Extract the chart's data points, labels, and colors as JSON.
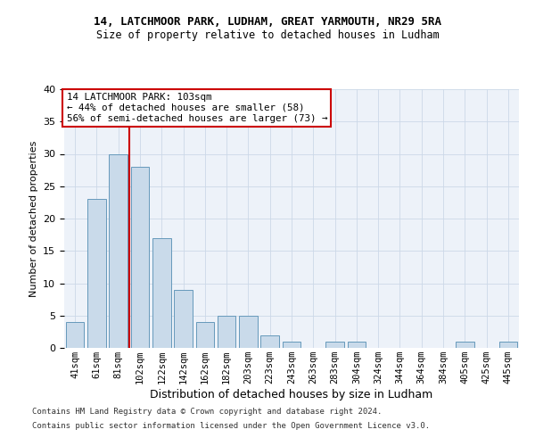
{
  "title1": "14, LATCHMOOR PARK, LUDHAM, GREAT YARMOUTH, NR29 5RA",
  "title2": "Size of property relative to detached houses in Ludham",
  "xlabel": "Distribution of detached houses by size in Ludham",
  "ylabel": "Number of detached properties",
  "categories": [
    "41sqm",
    "61sqm",
    "81sqm",
    "102sqm",
    "122sqm",
    "142sqm",
    "162sqm",
    "182sqm",
    "203sqm",
    "223sqm",
    "243sqm",
    "263sqm",
    "283sqm",
    "304sqm",
    "324sqm",
    "344sqm",
    "364sqm",
    "384sqm",
    "405sqm",
    "425sqm",
    "445sqm"
  ],
  "values": [
    4,
    23,
    30,
    28,
    17,
    9,
    4,
    5,
    5,
    2,
    1,
    0,
    1,
    1,
    0,
    0,
    0,
    0,
    1,
    0,
    1
  ],
  "bar_color": "#c9daea",
  "bar_edge_color": "#6699bb",
  "grid_color": "#ccd8e8",
  "background_color": "#edf2f9",
  "vline_color": "#cc0000",
  "vline_pos": 2.5,
  "annotation_title": "14 LATCHMOOR PARK: 103sqm",
  "annotation_line1": "← 44% of detached houses are smaller (58)",
  "annotation_line2": "56% of semi-detached houses are larger (73) →",
  "annotation_box_facecolor": "#ffffff",
  "annotation_box_edgecolor": "#cc0000",
  "footer1": "Contains HM Land Registry data © Crown copyright and database right 2024.",
  "footer2": "Contains public sector information licensed under the Open Government Licence v3.0.",
  "ylim": [
    0,
    40
  ],
  "yticks": [
    0,
    5,
    10,
    15,
    20,
    25,
    30,
    35,
    40
  ]
}
